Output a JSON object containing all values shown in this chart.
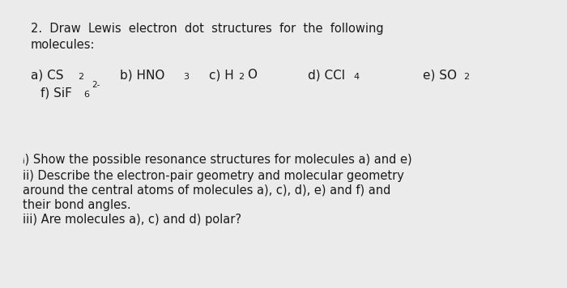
{
  "bg_color": "#ebebeb",
  "text_color": "#1a1a1a",
  "font_family": "DejaVu Sans",
  "fs_main": 10.5,
  "fs_mol": 11.0,
  "fs_sub": 8.0,
  "fs_sup": 7.5,
  "title_line1": "2.  Draw  Lewis  electron  dot  structures  for  the  following",
  "title_line2": "molecules:",
  "part_i": "ᵢ) Show the possible resonance structures for molecules a) and e)",
  "part_ii_1": "ii) Describe the electron-pair geometry and molecular geometry",
  "part_ii_2": "around the central atoms of molecules a), c), d), e) and f) and",
  "part_ii_3": "their bond angles.",
  "part_iii": "iii) Are molecules a), c) and d) polar?"
}
